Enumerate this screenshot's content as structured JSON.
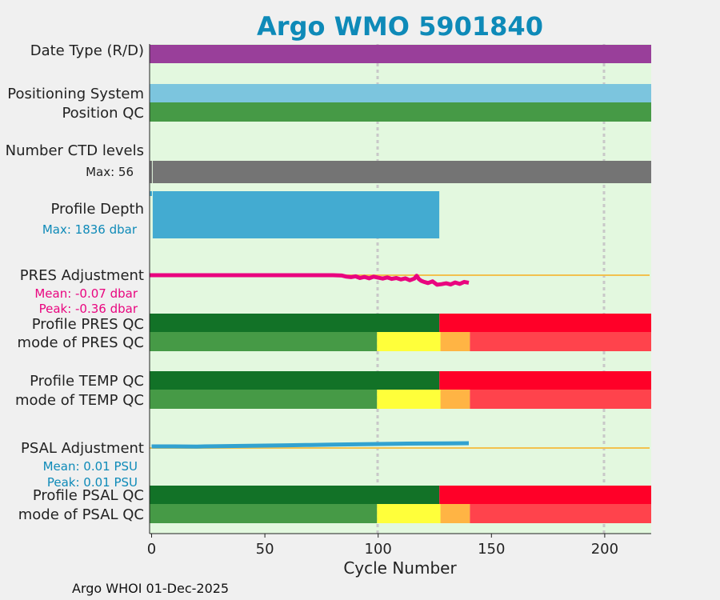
{
  "chart_data": {
    "type": "timeline",
    "title": "Argo WMO 5901840",
    "xlabel": "Cycle Number",
    "xlim": [
      -1,
      221
    ],
    "xticks": [
      0,
      50,
      100,
      150,
      200
    ],
    "gridlines_at": [
      100,
      200
    ],
    "footer": "Argo WHOI 01-Dec-2025",
    "colors": {
      "title": "#0e8ab8",
      "panel_bg": "#e3f8df",
      "data_type_purple": "#993f9a",
      "positioning_blue": "#7cc5de",
      "qc_good": "#469a46",
      "profile_qc_dark_green": "#127227",
      "profile_qc_red": "#ff0028",
      "qc_yellow": "#ffff3a",
      "qc_orange": "#ffb444",
      "qc_pink_red": "#ff434c",
      "ctd_gray": "#747474",
      "depth_blue": "#43abd1",
      "pres_magenta": "#e9057f",
      "psal_blue": "#32a2d0",
      "zero_line": "#f2c14e",
      "grid": "#c8c8c8"
    },
    "rows": {
      "date_type": {
        "label": "Date Type (R/D)",
        "segments": [
          {
            "from": -1,
            "to": 221,
            "color": "data_type_purple"
          }
        ]
      },
      "positioning_system": {
        "label": "Positioning System",
        "segments": [
          {
            "from": -1,
            "to": 221,
            "color": "positioning_blue"
          }
        ]
      },
      "position_qc": {
        "label": "Position QC",
        "segments": [
          {
            "from": -1,
            "to": 221,
            "color": "qc_good"
          }
        ]
      },
      "ctd_levels": {
        "label": "Number CTD levels",
        "max_label": "Max: 56",
        "max": 56,
        "segments": [
          {
            "from": 0.5,
            "to": 221,
            "value": 56,
            "color": "ctd_gray"
          }
        ]
      },
      "profile_depth": {
        "label": "Profile Depth",
        "max_label": "Max: 1836 dbar",
        "max_dbar": 1836,
        "segments": [
          {
            "from": 0.5,
            "to": 127,
            "value": 1836,
            "color": "depth_blue"
          }
        ]
      },
      "pres_adjustment": {
        "label": "PRES Adjustment",
        "mean_label": "Mean: -0.07 dbar",
        "peak_label": "Peak: -0.36 dbar",
        "units": "dbar",
        "y_range": [
          -0.4,
          0.05
        ],
        "cycles": [
          -1,
          10,
          20,
          30,
          40,
          50,
          60,
          70,
          80,
          84,
          86,
          88,
          90,
          92,
          94,
          96,
          98,
          100,
          102,
          104,
          106,
          108,
          110,
          112,
          114,
          116,
          117,
          118,
          119,
          120,
          122,
          124,
          126,
          128,
          130,
          132,
          134,
          136,
          138,
          140
        ],
        "values": [
          0,
          0,
          0,
          0,
          0,
          0,
          0,
          0,
          0,
          -0.01,
          -0.05,
          -0.07,
          -0.04,
          -0.1,
          -0.06,
          -0.11,
          -0.05,
          -0.09,
          -0.12,
          -0.08,
          -0.13,
          -0.1,
          -0.15,
          -0.11,
          -0.18,
          -0.12,
          -0.02,
          -0.14,
          -0.2,
          -0.23,
          -0.28,
          -0.22,
          -0.34,
          -0.32,
          -0.29,
          -0.33,
          -0.26,
          -0.31,
          -0.24,
          -0.27
        ]
      },
      "profile_pres_qc": {
        "label": "Profile PRES QC",
        "segments": [
          {
            "from": -1,
            "to": 127,
            "color": "profile_qc_dark_green"
          },
          {
            "from": 127,
            "to": 221,
            "color": "profile_qc_red"
          }
        ]
      },
      "mode_pres_qc": {
        "label": "mode of PRES QC",
        "segments": [
          {
            "from": -1,
            "to": 99.5,
            "color": "qc_good"
          },
          {
            "from": 99.5,
            "to": 127.5,
            "color": "qc_yellow"
          },
          {
            "from": 127.5,
            "to": 140.5,
            "color": "qc_orange"
          },
          {
            "from": 140.5,
            "to": 221,
            "color": "qc_pink_red"
          }
        ]
      },
      "profile_temp_qc": {
        "label": "Profile TEMP QC",
        "segments": [
          {
            "from": -1,
            "to": 127,
            "color": "profile_qc_dark_green"
          },
          {
            "from": 127,
            "to": 221,
            "color": "profile_qc_red"
          }
        ]
      },
      "mode_temp_qc": {
        "label": "mode of TEMP QC",
        "segments": [
          {
            "from": -1,
            "to": 99.5,
            "color": "qc_good"
          },
          {
            "from": 99.5,
            "to": 127.5,
            "color": "qc_yellow"
          },
          {
            "from": 127.5,
            "to": 140.5,
            "color": "qc_orange"
          },
          {
            "from": 140.5,
            "to": 221,
            "color": "qc_pink_red"
          }
        ]
      },
      "psal_adjustment": {
        "label": "PSAL Adjustment",
        "mean_label": "Mean: 0.01 PSU",
        "peak_label": "Peak: 0.01 PSU",
        "units": "PSU",
        "y_range": [
          -0.01,
          0.03
        ],
        "cycles": [
          0,
          10,
          20,
          30,
          40,
          50,
          60,
          70,
          80,
          90,
          100,
          110,
          120,
          130,
          140
        ],
        "values": [
          0.0,
          0.0,
          -0.0005,
          0.0007,
          0.0015,
          0.0025,
          0.0035,
          0.0045,
          0.0055,
          0.0065,
          0.0075,
          0.0085,
          0.009,
          0.0095,
          0.01
        ]
      },
      "profile_psal_qc": {
        "label": "Profile PSAL QC",
        "segments": [
          {
            "from": -1,
            "to": 127,
            "color": "profile_qc_dark_green"
          },
          {
            "from": 127,
            "to": 221,
            "color": "profile_qc_red"
          }
        ]
      },
      "mode_psal_qc": {
        "label": "mode of PSAL QC",
        "segments": [
          {
            "from": -1,
            "to": 99.5,
            "color": "qc_good"
          },
          {
            "from": 99.5,
            "to": 127.5,
            "color": "qc_yellow"
          },
          {
            "from": 127.5,
            "to": 140.5,
            "color": "qc_orange"
          },
          {
            "from": 140.5,
            "to": 221,
            "color": "qc_pink_red"
          }
        ]
      }
    }
  }
}
